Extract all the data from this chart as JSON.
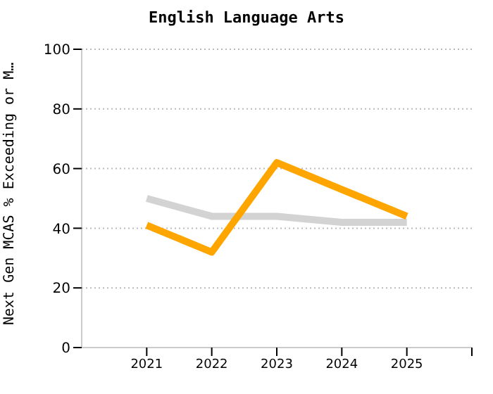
{
  "chart_data": {
    "type": "line",
    "title": "English Language Arts",
    "ylabel": "Next Gen MCAS % Exceeding or M…",
    "x": [
      2021,
      2022,
      2023,
      2024,
      2025
    ],
    "xlim": [
      2020,
      2026
    ],
    "xticks": [
      2021,
      2022,
      2023,
      2024,
      2025,
      {
        "value": 2026,
        "label": null
      }
    ],
    "ylim": [
      0,
      100
    ],
    "yticks": [
      0,
      20,
      40,
      60,
      80,
      100
    ],
    "grid": "y",
    "marker": "none",
    "line_style": "solid",
    "series": [
      {
        "color": "#d3d3d3",
        "values": [
          50,
          44,
          44,
          42,
          42
        ]
      },
      {
        "color": "#ffa500",
        "values": [
          41,
          32,
          62,
          53,
          44
        ]
      }
    ]
  }
}
